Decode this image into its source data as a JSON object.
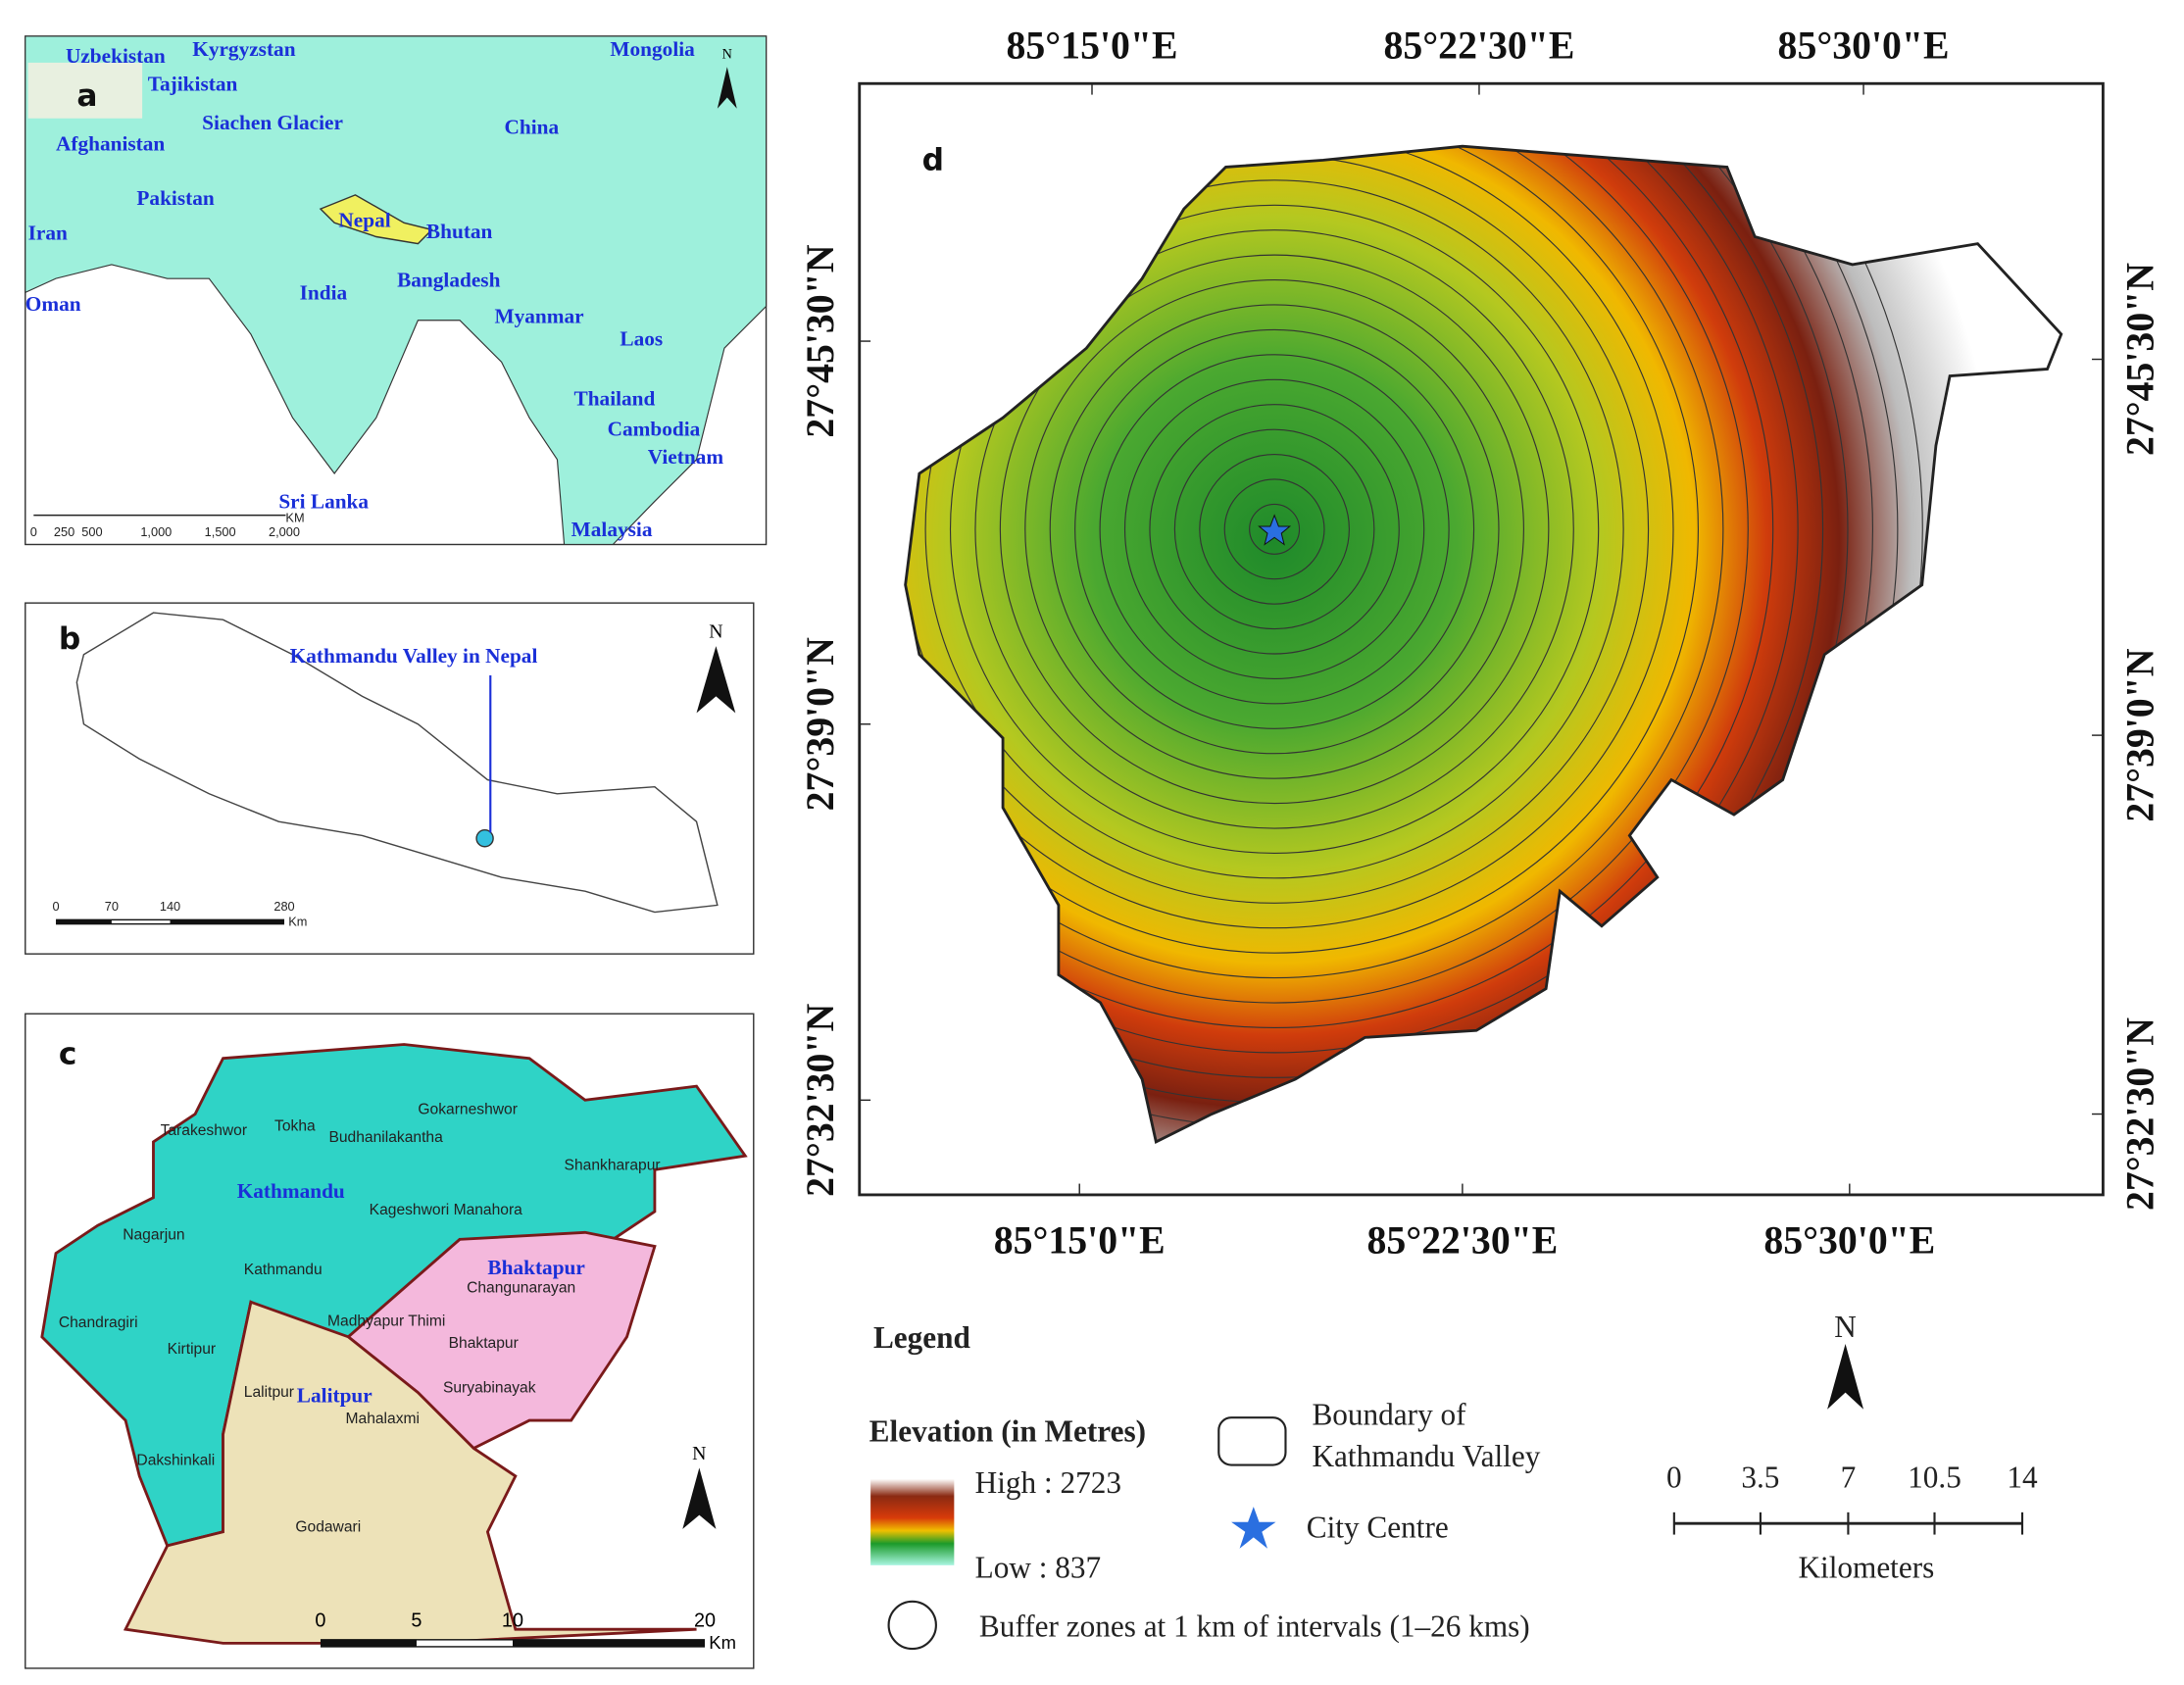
{
  "panel_a": {
    "label": "a",
    "countries": [
      "Uzbekistan",
      "Kyrgyzstan",
      "Mongolia",
      "Tajikistan",
      "Siachen Glacier",
      "Afghanistan",
      "China",
      "Pakistan",
      "Nepal",
      "Bhutan",
      "Iran",
      "India",
      "Bangladesh",
      "Oman",
      "Myanmar",
      "Laos",
      "Thailand",
      "Cambodia",
      "Vietnam",
      "Sri Lanka",
      "Malaysia"
    ],
    "north": "N",
    "scale": [
      "0",
      "250",
      "500",
      "1,000",
      "1,500",
      "2,000"
    ],
    "scale_unit": "KM"
  },
  "panel_b": {
    "label": "b",
    "annotation": "Kathmandu Valley in Nepal",
    "north": "N",
    "scale": [
      "0",
      "70",
      "140",
      "280"
    ],
    "scale_unit": "Km"
  },
  "panel_c": {
    "label": "c",
    "districts": [
      "Kathmandu",
      "Bhaktapur",
      "Lalitpur"
    ],
    "municipalities": [
      "Tarakeshwor",
      "Tokha",
      "Budhanilakantha",
      "Gokarneshwor",
      "Shankharapur",
      "Nagarjun",
      "Kageshwori Manahora",
      "Kathmandu",
      "Changunarayan",
      "Chandragiri",
      "Madhyapur Thimi",
      "Bhaktapur",
      "Kirtipur",
      "Lalitpur",
      "Suryabinayak",
      "Mahalaxmi",
      "Dakshinkali",
      "Godawari"
    ],
    "north": "N",
    "scale": [
      "0",
      "5",
      "10",
      "20"
    ],
    "scale_unit": "Km"
  },
  "panel_d": {
    "label": "d",
    "longitudes": [
      "85°15'0\"E",
      "85°22'30\"E",
      "85°30'0\"E"
    ],
    "latitudes": [
      "27°45'30\"N",
      "27°39'0\"N",
      "27°32'30\"N"
    ]
  },
  "legend": {
    "title": "Legend",
    "elevation_title": "Elevation (in Metres)",
    "high": "High : 2723",
    "low": "Low : 837",
    "boundary": [
      "Boundary of",
      "Kathmandu Valley"
    ],
    "city_centre": "City Centre",
    "buffer": "Buffer zones at 1 km of intervals (1–26 kms)",
    "north": "N",
    "scale": [
      "0",
      "3.5",
      "7",
      "10.5",
      "14"
    ],
    "scale_unit": "Kilometers"
  }
}
